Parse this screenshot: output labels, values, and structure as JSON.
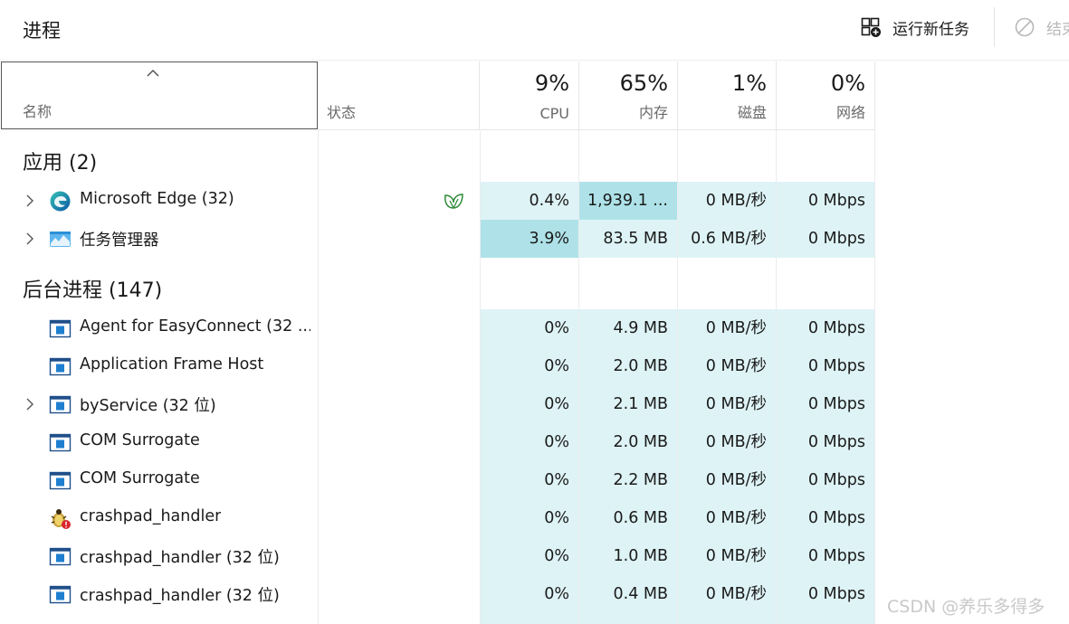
{
  "page_title": "进程",
  "toolbar": {
    "run_new_task": "运行新任务",
    "end_task": "结束"
  },
  "columns": {
    "name": "名称",
    "status": "状态",
    "cpu": {
      "pct": "9%",
      "label": "CPU"
    },
    "memory": {
      "pct": "65%",
      "label": "内存"
    },
    "disk": {
      "pct": "1%",
      "label": "磁盘"
    },
    "network": {
      "pct": "0%",
      "label": "网络"
    }
  },
  "groups": {
    "apps": "应用 (2)",
    "background": "后台进程 (147)"
  },
  "apps": [
    {
      "name": "Microsoft Edge (32)",
      "icon": "edge-icon",
      "status_icon": "efficiency-leaf-icon",
      "cpu": "0.4%",
      "memory": "1,939.1 ...",
      "disk": "0 MB/秒",
      "network": "0 Mbps"
    },
    {
      "name": "任务管理器",
      "icon": "task-manager-icon",
      "cpu": "3.9%",
      "memory": "83.5 MB",
      "disk": "0.6 MB/秒",
      "network": "0 Mbps"
    }
  ],
  "background": [
    {
      "name": "Agent for EasyConnect (32 ...",
      "icon": "window-app-icon",
      "cpu": "0%",
      "memory": "4.9 MB",
      "disk": "0 MB/秒",
      "network": "0 Mbps"
    },
    {
      "name": "Application Frame Host",
      "icon": "window-app-icon",
      "cpu": "0%",
      "memory": "2.0 MB",
      "disk": "0 MB/秒",
      "network": "0 Mbps"
    },
    {
      "name": "byService (32 位)",
      "icon": "window-app-icon",
      "cpu": "0%",
      "memory": "2.1 MB",
      "disk": "0 MB/秒",
      "network": "0 Mbps"
    },
    {
      "name": "COM Surrogate",
      "icon": "window-app-icon",
      "cpu": "0%",
      "memory": "2.0 MB",
      "disk": "0 MB/秒",
      "network": "0 Mbps"
    },
    {
      "name": "COM Surrogate",
      "icon": "window-app-icon",
      "cpu": "0%",
      "memory": "2.2 MB",
      "disk": "0 MB/秒",
      "network": "0 Mbps"
    },
    {
      "name": "crashpad_handler",
      "icon": "bug-icon",
      "cpu": "0%",
      "memory": "0.6 MB",
      "disk": "0 MB/秒",
      "network": "0 Mbps"
    },
    {
      "name": "crashpad_handler (32 位)",
      "icon": "window-app-icon",
      "cpu": "0%",
      "memory": "1.0 MB",
      "disk": "0 MB/秒",
      "network": "0 Mbps"
    },
    {
      "name": "crashpad_handler (32 位)",
      "icon": "window-app-icon",
      "cpu": "0%",
      "memory": "0.4 MB",
      "disk": "0 MB/秒",
      "network": "0 Mbps"
    }
  ],
  "watermark": "CSDN @养乐多得多"
}
